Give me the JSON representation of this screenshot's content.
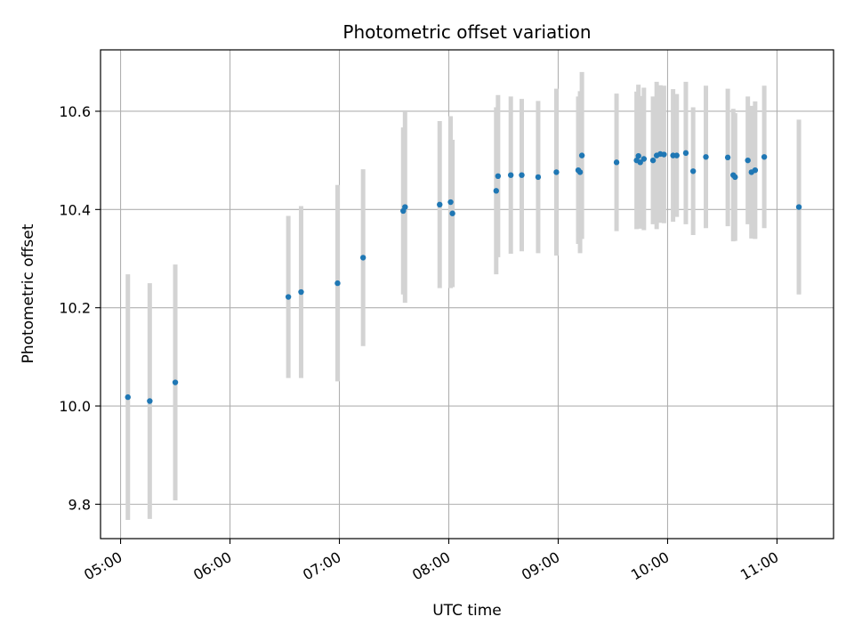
{
  "chart_data": {
    "type": "scatter",
    "title": "Photometric offset variation",
    "xlabel": "UTC time",
    "ylabel": "Photometric offset",
    "xlim": [
      "04:49",
      "11:31"
    ],
    "ylim": [
      9.73,
      10.725
    ],
    "xticks": [
      "05:00",
      "06:00",
      "07:00",
      "08:00",
      "09:00",
      "10:00",
      "11:00"
    ],
    "yticks": [
      9.8,
      10.0,
      10.2,
      10.4,
      10.6
    ],
    "ytick_labels": [
      "9.8",
      "10.0",
      "10.2",
      "10.4",
      "10.6"
    ],
    "grid": true,
    "colors": {
      "point": "#1f77b4",
      "errorbar": "#d3d3d3",
      "grid": "#b0b0b0"
    },
    "series": [
      {
        "x": [
          "05:04",
          "05:16",
          "05:30",
          "06:32",
          "06:39",
          "06:59",
          "07:13",
          "07:35",
          "07:36",
          "07:55",
          "08:01",
          "08:02",
          "08:26",
          "08:27",
          "08:34",
          "08:40",
          "08:49",
          "08:59",
          "09:11",
          "09:12",
          "09:13",
          "09:32",
          "09:43",
          "09:44",
          "09:45",
          "09:47",
          "09:52",
          "09:54",
          "09:56",
          "09:58",
          "10:03",
          "10:05",
          "10:10",
          "10:14",
          "10:21",
          "10:33",
          "10:36",
          "10:37",
          "10:44",
          "10:46",
          "10:48",
          "10:53",
          "11:12"
        ],
        "y": [
          10.018,
          10.01,
          10.048,
          10.222,
          10.232,
          10.25,
          10.302,
          10.397,
          10.405,
          10.41,
          10.415,
          10.392,
          10.438,
          10.468,
          10.47,
          10.47,
          10.466,
          10.476,
          10.48,
          10.476,
          10.51,
          10.496,
          10.5,
          10.509,
          10.496,
          10.503,
          10.5,
          10.51,
          10.513,
          10.512,
          10.51,
          10.51,
          10.515,
          10.478,
          10.507,
          10.506,
          10.47,
          10.466,
          10.5,
          10.476,
          10.48,
          10.507,
          10.405
        ],
        "err": [
          0.25,
          0.24,
          0.24,
          0.165,
          0.175,
          0.2,
          0.18,
          0.17,
          0.195,
          0.17,
          0.175,
          0.15,
          0.17,
          0.165,
          0.16,
          0.155,
          0.155,
          0.17,
          0.15,
          0.165,
          0.17,
          0.14,
          0.14,
          0.145,
          0.135,
          0.145,
          0.13,
          0.15,
          0.14,
          0.14,
          0.135,
          0.125,
          0.145,
          0.13,
          0.145,
          0.14,
          0.135,
          0.13,
          0.13,
          0.135,
          0.14,
          0.145,
          0.178
        ]
      }
    ]
  }
}
